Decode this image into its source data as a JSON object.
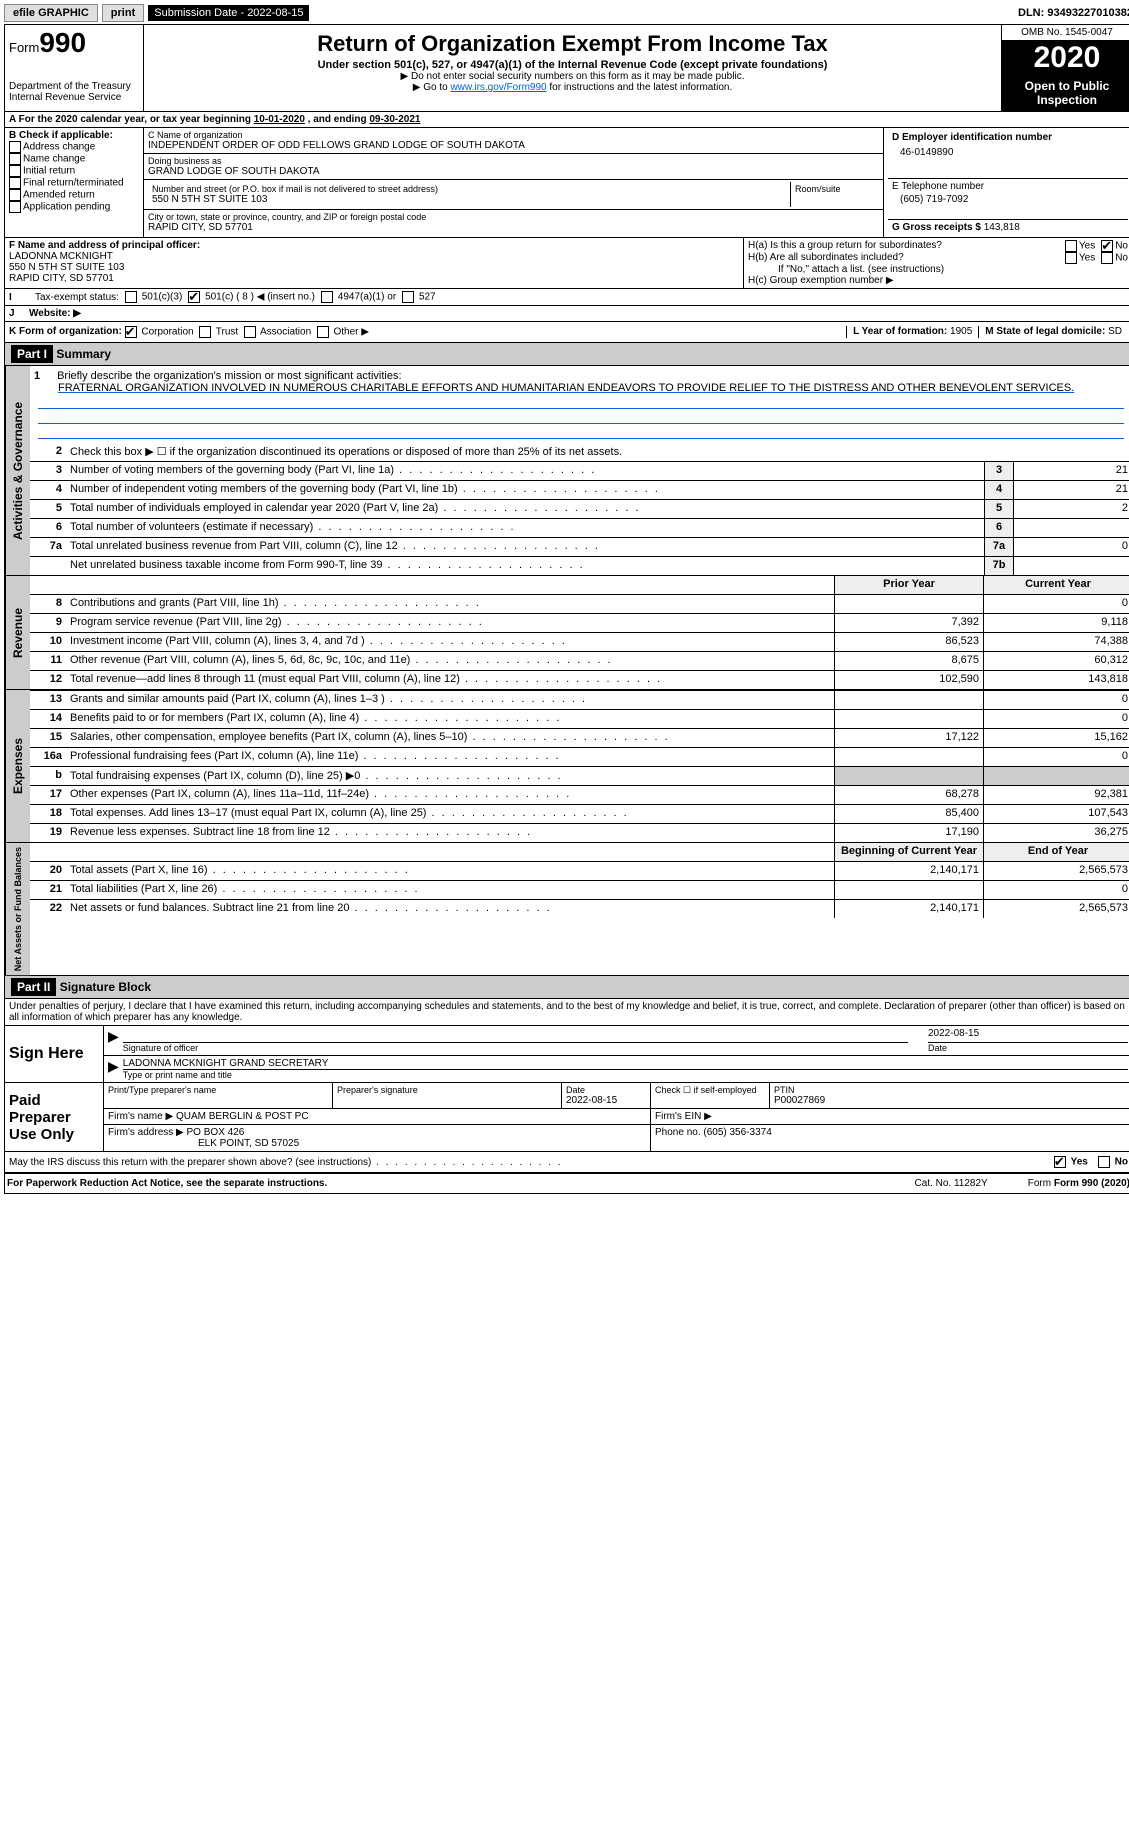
{
  "topbar": {
    "efile": "efile GRAPHIC",
    "print": "print",
    "submission_label": "Submission Date - ",
    "submission_date": "2022-08-15",
    "dln_label": "DLN: ",
    "dln": "93493227010382"
  },
  "header": {
    "form_label": "Form",
    "form_num": "990",
    "dept1": "Department of the Treasury",
    "dept2": "Internal Revenue Service",
    "title": "Return of Organization Exempt From Income Tax",
    "subtitle": "Under section 501(c), 527, or 4947(a)(1) of the Internal Revenue Code (except private foundations)",
    "note1": "▶ Do not enter social security numbers on this form as it may be made public.",
    "note2a": "▶ Go to ",
    "note2link": "www.irs.gov/Form990",
    "note2b": " for instructions and the latest information.",
    "omb_label": "OMB No. ",
    "omb": "1545-0047",
    "year": "2020",
    "open": "Open to Public Inspection"
  },
  "period": {
    "text_a": "For the 2020 calendar year, or tax year beginning ",
    "begin": "10-01-2020",
    "text_b": " , and ending ",
    "end": "09-30-2021"
  },
  "boxB": {
    "title": "B Check if applicable:",
    "items": [
      "Address change",
      "Name change",
      "Initial return",
      "Final return/terminated",
      "Amended return",
      "Application pending"
    ]
  },
  "boxC": {
    "name_label": "C Name of organization",
    "name": "INDEPENDENT ORDER OF ODD FELLOWS GRAND LODGE OF SOUTH DAKOTA",
    "dba_label": "Doing business as",
    "dba": "GRAND LODGE OF SOUTH DAKOTA",
    "street_label": "Number and street (or P.O. box if mail is not delivered to street address)",
    "room_label": "Room/suite",
    "street": "550 N 5TH ST SUITE 103",
    "city_label": "City or town, state or province, country, and ZIP or foreign postal code",
    "city": "RAPID CITY, SD  57701"
  },
  "boxD": {
    "label": "D Employer identification number",
    "ein": "46-0149890"
  },
  "boxE": {
    "label": "E Telephone number",
    "phone": "(605) 719-7092"
  },
  "boxG": {
    "label": "G Gross receipts $ ",
    "amount": "143,818"
  },
  "boxF": {
    "label": "F Name and address of principal officer:",
    "name": "LADONNA MCKNIGHT",
    "street": "550 N 5TH ST SUITE 103",
    "city": "RAPID CITY, SD  57701"
  },
  "boxH": {
    "a_label": "H(a)  Is this a group return for subordinates?",
    "b_label": "H(b)  Are all subordinates included?",
    "b_note": "If \"No,\" attach a list. (see instructions)",
    "c_label": "H(c)  Group exemption number ▶",
    "yes": "Yes",
    "no": "No"
  },
  "boxI": {
    "label": "Tax-exempt status:",
    "opt1": "501(c)(3)",
    "opt2": "501(c) ( 8 ) ◀ (insert no.)",
    "opt3": "4947(a)(1) or",
    "opt4": "527"
  },
  "boxJ": {
    "label": "Website: ▶"
  },
  "boxK": {
    "label": "K Form of organization:",
    "opts": [
      "Corporation",
      "Trust",
      "Association",
      "Other ▶"
    ]
  },
  "boxL": {
    "label": "L Year of formation: ",
    "val": "1905"
  },
  "boxM": {
    "label": "M State of legal domicile: ",
    "val": "SD"
  },
  "part1": {
    "hdr": "Part I",
    "title": "Summary"
  },
  "mission": {
    "num": "1",
    "label": "Briefly describe the organization's mission or most significant activities:",
    "text": "FRATERNAL ORGANIZATION INVOLVED IN NUMEROUS CHARITABLE EFFORTS AND HUMANITARIAN ENDEAVORS TO PROVIDE RELIEF TO THE DISTRESS AND OTHER BENEVOLENT SERVICES."
  },
  "governance": {
    "label": "Activities & Governance",
    "lines": [
      {
        "n": "2",
        "t": "Check this box ▶ ☐ if the organization discontinued its operations or disposed of more than 25% of its net assets."
      },
      {
        "n": "3",
        "t": "Number of voting members of the governing body (Part VI, line 1a)",
        "box": "3",
        "v": "21"
      },
      {
        "n": "4",
        "t": "Number of independent voting members of the governing body (Part VI, line 1b)",
        "box": "4",
        "v": "21"
      },
      {
        "n": "5",
        "t": "Total number of individuals employed in calendar year 2020 (Part V, line 2a)",
        "box": "5",
        "v": "2"
      },
      {
        "n": "6",
        "t": "Total number of volunteers (estimate if necessary)",
        "box": "6",
        "v": ""
      },
      {
        "n": "7a",
        "t": "Total unrelated business revenue from Part VIII, column (C), line 12",
        "box": "7a",
        "v": "0"
      },
      {
        "n": "",
        "t": "Net unrelated business taxable income from Form 990-T, line 39",
        "box": "7b",
        "v": ""
      }
    ]
  },
  "cols": {
    "prior": "Prior Year",
    "current": "Current Year",
    "begin": "Beginning of Current Year",
    "end": "End of Year"
  },
  "revenue": {
    "label": "Revenue",
    "lines": [
      {
        "n": "8",
        "t": "Contributions and grants (Part VIII, line 1h)",
        "p": "",
        "c": "0"
      },
      {
        "n": "9",
        "t": "Program service revenue (Part VIII, line 2g)",
        "p": "7,392",
        "c": "9,118"
      },
      {
        "n": "10",
        "t": "Investment income (Part VIII, column (A), lines 3, 4, and 7d )",
        "p": "86,523",
        "c": "74,388"
      },
      {
        "n": "11",
        "t": "Other revenue (Part VIII, column (A), lines 5, 6d, 8c, 9c, 10c, and 11e)",
        "p": "8,675",
        "c": "60,312"
      },
      {
        "n": "12",
        "t": "Total revenue—add lines 8 through 11 (must equal Part VIII, column (A), line 12)",
        "p": "102,590",
        "c": "143,818"
      }
    ]
  },
  "expenses": {
    "label": "Expenses",
    "lines": [
      {
        "n": "13",
        "t": "Grants and similar amounts paid (Part IX, column (A), lines 1–3 )",
        "p": "",
        "c": "0"
      },
      {
        "n": "14",
        "t": "Benefits paid to or for members (Part IX, column (A), line 4)",
        "p": "",
        "c": "0"
      },
      {
        "n": "15",
        "t": "Salaries, other compensation, employee benefits (Part IX, column (A), lines 5–10)",
        "p": "17,122",
        "c": "15,162"
      },
      {
        "n": "16a",
        "t": "Professional fundraising fees (Part IX, column (A), line 11e)",
        "p": "",
        "c": "0"
      },
      {
        "n": "b",
        "t": "Total fundraising expenses (Part IX, column (D), line 25) ▶0",
        "p": "grey",
        "c": "grey"
      },
      {
        "n": "17",
        "t": "Other expenses (Part IX, column (A), lines 11a–11d, 11f–24e)",
        "p": "68,278",
        "c": "92,381"
      },
      {
        "n": "18",
        "t": "Total expenses. Add lines 13–17 (must equal Part IX, column (A), line 25)",
        "p": "85,400",
        "c": "107,543"
      },
      {
        "n": "19",
        "t": "Revenue less expenses. Subtract line 18 from line 12",
        "p": "17,190",
        "c": "36,275"
      }
    ]
  },
  "netassets": {
    "label": "Net Assets or Fund Balances",
    "lines": [
      {
        "n": "20",
        "t": "Total assets (Part X, line 16)",
        "p": "2,140,171",
        "c": "2,565,573"
      },
      {
        "n": "21",
        "t": "Total liabilities (Part X, line 26)",
        "p": "",
        "c": "0"
      },
      {
        "n": "22",
        "t": "Net assets or fund balances. Subtract line 21 from line 20",
        "p": "2,140,171",
        "c": "2,565,573"
      }
    ]
  },
  "part2": {
    "hdr": "Part II",
    "title": "Signature Block"
  },
  "penalties": "Under penalties of perjury, I declare that I have examined this return, including accompanying schedules and statements, and to the best of my knowledge and belief, it is true, correct, and complete. Declaration of preparer (other than officer) is based on all information of which preparer has any knowledge.",
  "sign": {
    "here": "Sign Here",
    "sig_officer": "Signature of officer",
    "date": "Date",
    "date_val": "2022-08-15",
    "officer_name": "LADONNA MCKNIGHT GRAND SECRETARY",
    "type_name": "Type or print name and title"
  },
  "prep": {
    "label": "Paid Preparer Use Only",
    "print_label": "Print/Type preparer's name",
    "sig_label": "Preparer's signature",
    "date_label": "Date",
    "date_val": "2022-08-15",
    "self_emp": "Check ☐ if self-employed",
    "ptin_label": "PTIN",
    "ptin": "P00027869",
    "firm_name_label": "Firm's name    ▶ ",
    "firm_name": "QUAM BERGLIN & POST PC",
    "firm_ein_label": "Firm's EIN ▶",
    "firm_addr_label": "Firm's address ▶ ",
    "firm_addr1": "PO BOX 426",
    "firm_addr2": "ELK POINT, SD  57025",
    "phone_label": "Phone no. ",
    "phone": "(605) 356-3374"
  },
  "discuss": {
    "text": "May the IRS discuss this return with the preparer shown above? (see instructions)",
    "yes": "Yes",
    "no": "No"
  },
  "footer": {
    "pra": "For Paperwork Reduction Act Notice, see the separate instructions.",
    "cat": "Cat. No. 11282Y",
    "form": "Form 990 (2020)"
  }
}
